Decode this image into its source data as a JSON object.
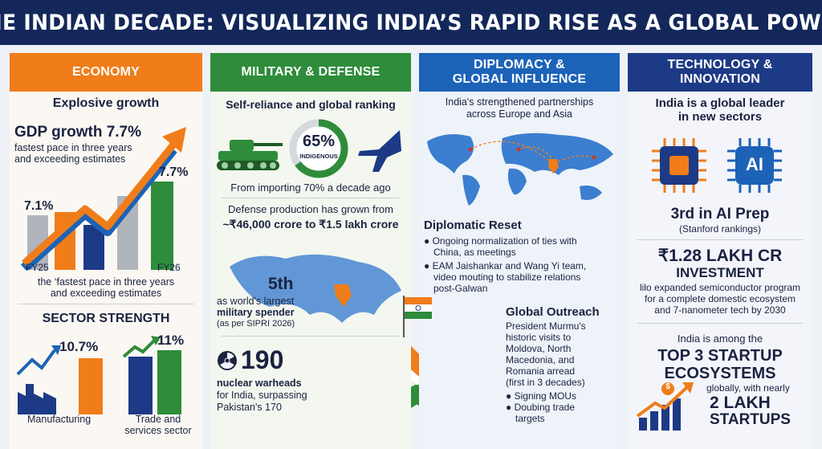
{
  "title": "THE INDIAN DECADE: VISUALIZING INDIA’S RAPID RISE AS A GLOBAL POWER",
  "economy": {
    "header": "ECONOMY",
    "subtitle": "Explosive growth",
    "gdp_headline": "GDP growth 7.7%",
    "gdp_desc_1": "fastest pace in three years",
    "gdp_desc_2": "and exceeding estimates",
    "bar_label_left": "7.1%",
    "bar_label_right": "7.7%",
    "fy_left": "FY25",
    "fy_right": "FY26",
    "caption_1": "the ‘fastest pace in three years",
    "caption_2": "and exceeding estimates",
    "sector_title": "SECTOR STRENGTH",
    "manufacturing_value": "10.7%",
    "manufacturing_label": "Manufacturing",
    "trade_value": "11%",
    "trade_label_1": "Trade and",
    "trade_label_2": "services sector"
  },
  "military": {
    "header": "MILITARY & DEFENSE",
    "subtitle": "Self-reliance and global ranking",
    "indigenous_pct": "65%",
    "indigenous_label": "INDIGENOUS",
    "indigenous_fraction": 0.65,
    "import_text": "From importing 70% a decade ago",
    "production_1": "Defense production has grown from",
    "production_2": "~₹46,000 crore to ₹1.5 lakh crore",
    "rank": "5th",
    "rank_desc_1": "as world's largest",
    "rank_desc_2": "military spender",
    "rank_source": "(as per SIPRI 2026)",
    "nuclear_count": "190",
    "nuclear_desc_1": "nuclear warheads",
    "nuclear_desc_2": "for India, surpassing",
    "nuclear_desc_3": "Pakistan's 170"
  },
  "diplomacy": {
    "header_1": "DIPLOMACY &",
    "header_2": "GLOBAL INFLUENCE",
    "subtitle_1": "India's strengthened partnerships",
    "subtitle_2": "across Europe and Asia",
    "reset_title": "Diplomatic Reset",
    "reset_b1_1": "Ongoing normalization of ties with",
    "reset_b1_2": "China, as meetings",
    "reset_b2_1": "EAM Jaishankar and Wang Yi team,",
    "reset_b2_2": "video mouting to stabilize relations",
    "reset_b2_3": "post-Galwan",
    "outreach_title": "Global Outreach",
    "outreach_1": "President Murmu's",
    "outreach_2": "historic visits to",
    "outreach_3": "Moldova, North",
    "outreach_4": "Macedonia, and",
    "outreach_5": "Romania arread",
    "outreach_6": "(first in 3 decades)",
    "outreach_b1": "Signing MOUs",
    "outreach_b2_1": "Doubing trade",
    "outreach_b2_2": "targets"
  },
  "technology": {
    "header_1": "TECHNOLOGY &",
    "header_2": "INNOVATION",
    "subtitle_1": "India is a global leader",
    "subtitle_2": "in new sectors",
    "ai_chip_text": "AI",
    "ai_rank": "3rd in AI Prep",
    "ai_source": "(Stanford rankings)",
    "investment_1": "₹1.28 LAKH CR",
    "investment_2": "INVESTMENT",
    "investment_desc_1": "lilo expanded semiconductor program",
    "investment_desc_2": "for a complete domestic ecosystem",
    "investment_desc_3": "and 7-nanometer tech by 2030",
    "startup_intro": "India is among the",
    "startup_title_1": "TOP 3 STARTUP",
    "startup_title_2": "ECOSYSTEMS",
    "startup_desc": "globally, with nearly",
    "startup_count": "2 LAKH",
    "startup_word": "STARTUPS",
    "coin_symbol": "$"
  },
  "colors": {
    "navy": "#13275a",
    "orange": "#f07d1a",
    "green": "#2e8c3a",
    "blue": "#1c63b8",
    "indigo": "#1d3a86"
  }
}
